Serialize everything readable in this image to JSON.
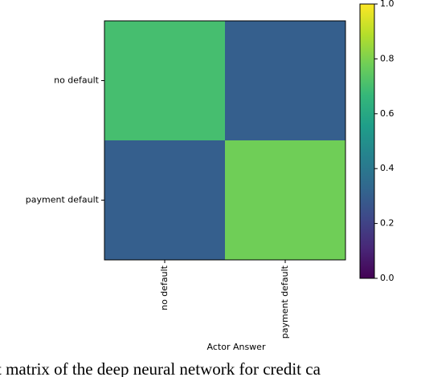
{
  "chart_data": {
    "type": "heatmap",
    "x_categories": [
      "no default",
      "payment default"
    ],
    "y_categories": [
      "no default",
      "payment default"
    ],
    "values": [
      [
        0.7,
        0.3
      ],
      [
        0.3,
        0.78
      ]
    ],
    "xlabel": "Actor Answer",
    "colormap": "viridis",
    "zlim": [
      0,
      1
    ],
    "zticks": [
      {
        "value": 0,
        "label": "0.0"
      },
      0.2,
      0.4,
      0.6,
      0.8,
      {
        "value": 1,
        "label": "1.0"
      }
    ]
  },
  "caption": "t matrix of the deep neural network for credit ca"
}
